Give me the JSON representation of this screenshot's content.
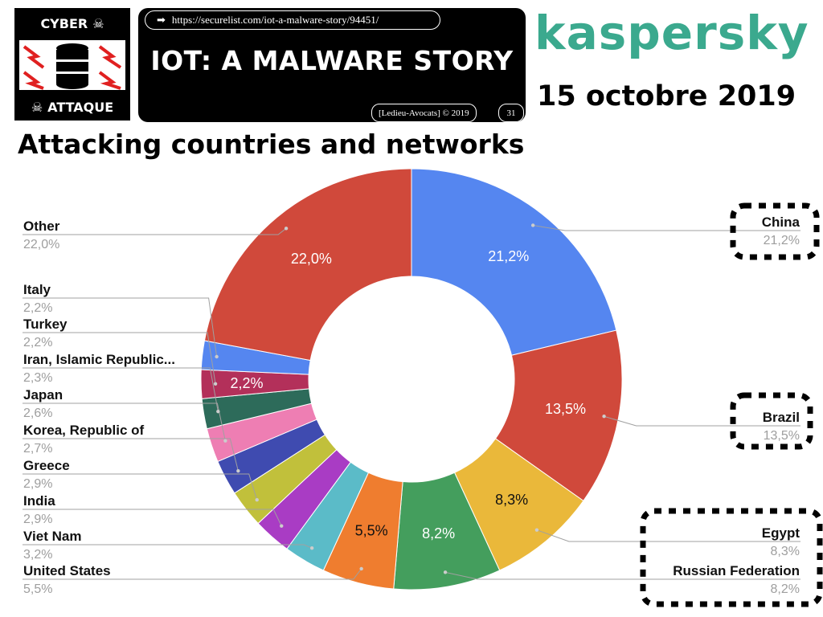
{
  "header": {
    "logo_top": "CYBER",
    "logo_bottom": "ATTAQUE",
    "url": "https://securelist.com/iot-a-malware-story/94451/",
    "title": "IOT: A MALWARE STORY",
    "credit": "[Ledieu-Avocats] © 2019",
    "page_number": "31",
    "brand": "kaspersky",
    "date": "15 octobre 2019"
  },
  "chart_data": {
    "type": "pie",
    "title": "Attacking countries and networks",
    "donut": true,
    "slices": [
      {
        "label": "China",
        "value": 21.2,
        "display": "21,2%",
        "color": "#5586f0"
      },
      {
        "label": "Brazil",
        "value": 13.5,
        "display": "13,5%",
        "color": "#d0493b"
      },
      {
        "label": "Egypt",
        "value": 8.3,
        "display": "8,3%",
        "color": "#eab83a"
      },
      {
        "label": "Russian Federation",
        "value": 8.2,
        "display": "8,2%",
        "color": "#449e5d"
      },
      {
        "label": "United States",
        "value": 5.5,
        "display": "5,5%",
        "color": "#ef7d2f"
      },
      {
        "label": "Viet Nam",
        "value": 3.2,
        "display": "3,2%",
        "color": "#5bbbc8"
      },
      {
        "label": "India",
        "value": 2.9,
        "display": "2,9%",
        "color": "#a93cc4"
      },
      {
        "label": "Greece",
        "value": 2.9,
        "display": "2,9%",
        "color": "#c1c03b"
      },
      {
        "label": "Korea, Republic of",
        "value": 2.7,
        "display": "2,7%",
        "color": "#3f4bb0"
      },
      {
        "label": "Japan",
        "value": 2.6,
        "display": "2,6%",
        "color": "#ee7eb3"
      },
      {
        "label": "Iran, Islamic Republic...",
        "value": 2.3,
        "display": "2,3%",
        "color": "#2d6b5a"
      },
      {
        "label": "Turkey",
        "value": 2.2,
        "display": "2,2%",
        "color": "#b3305a"
      },
      {
        "label": "Italy",
        "value": 2.2,
        "display": "2,2%",
        "color": "#5586f0"
      },
      {
        "label": "Other",
        "value": 22.0,
        "display": "22,0%",
        "color": "#d0493b"
      }
    ],
    "inner_labels": [
      "21,2%",
      "13,5%",
      "8,3%",
      "8,2%",
      "5,5%",
      "2,2%",
      "22,0%"
    ],
    "highlighted": [
      "China",
      "Brazil",
      "Egypt",
      "Russian Federation"
    ]
  }
}
